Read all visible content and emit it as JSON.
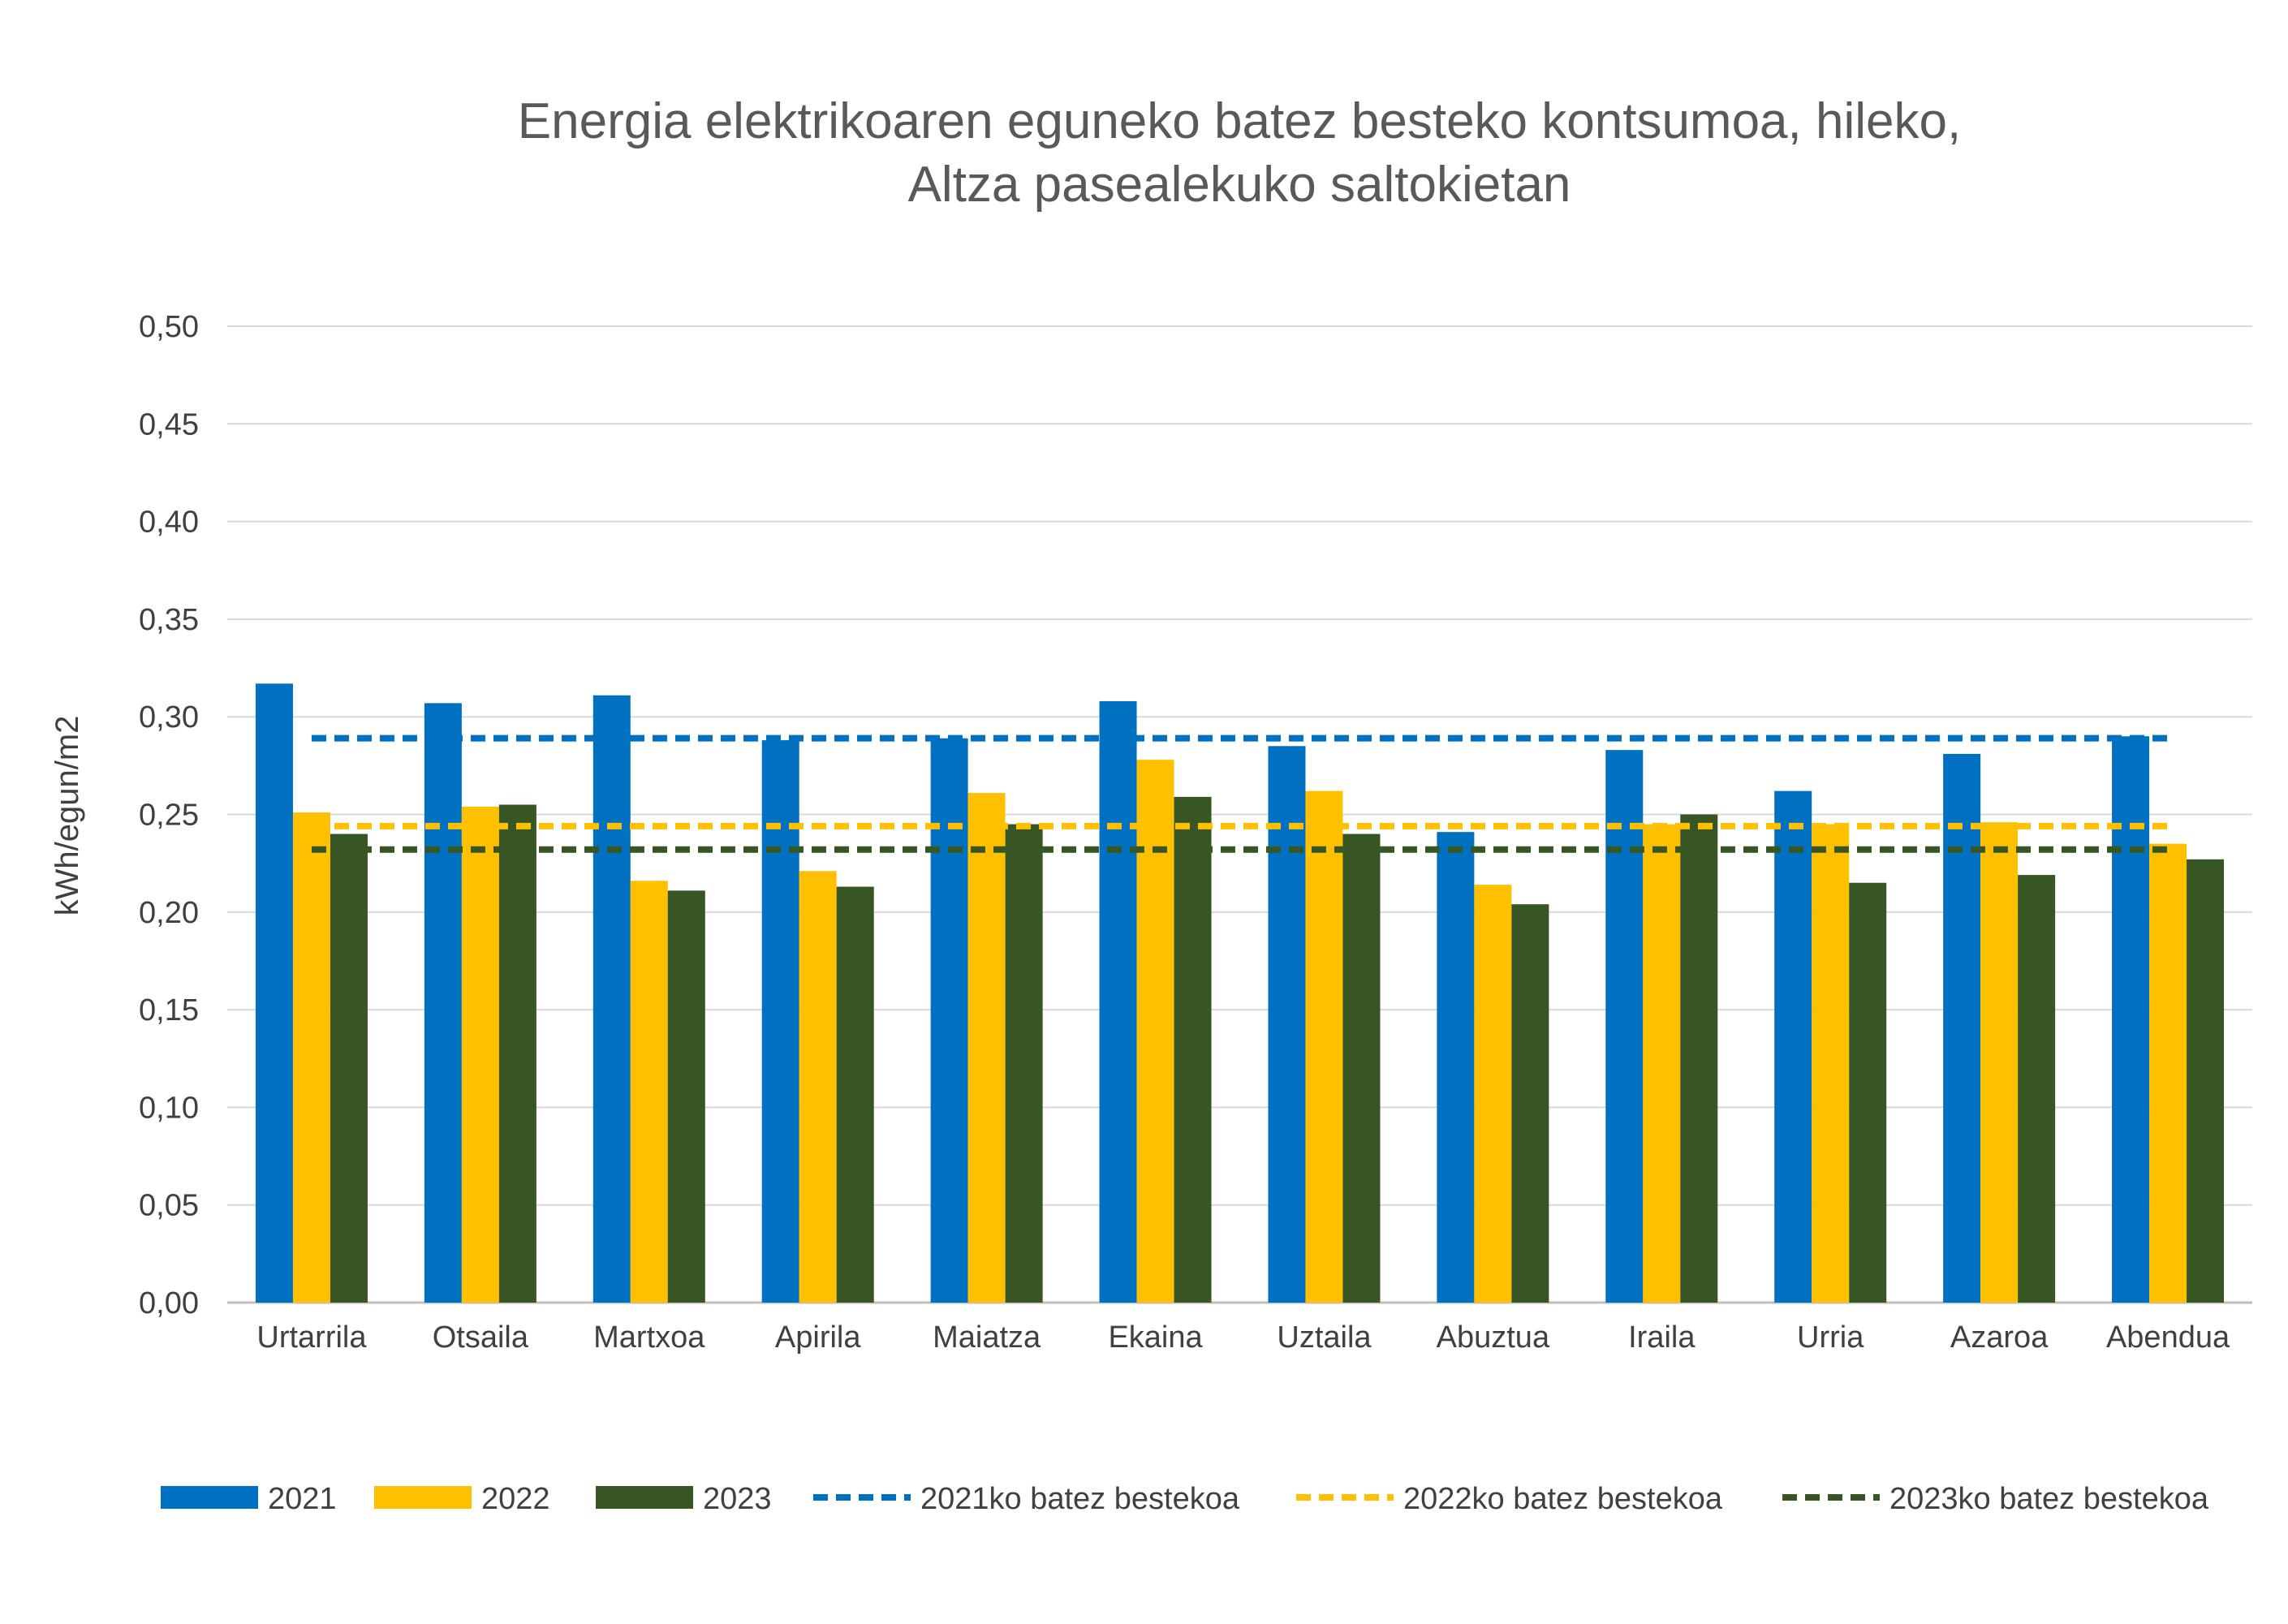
{
  "chart_data": {
    "type": "bar",
    "title_lines": [
      "Energia elektrikoaren eguneko batez besteko kontsumoa, hileko,",
      "Altza pasealekuko saltokietan"
    ],
    "xlabel": "",
    "ylabel": "kWh/egun/m2",
    "ylim": [
      0,
      0.5
    ],
    "yticks": [
      "0,00",
      "0,05",
      "0,10",
      "0,15",
      "0,20",
      "0,25",
      "0,30",
      "0,35",
      "0,40",
      "0,45",
      "0,50"
    ],
    "grid": true,
    "legend_position": "bottom",
    "categories": [
      "Urtarrila",
      "Otsaila",
      "Martxoa",
      "Apirila",
      "Maiatza",
      "Ekaina",
      "Uztaila",
      "Abuztua",
      "Iraila",
      "Urria",
      "Azaroa",
      "Abendua"
    ],
    "series": [
      {
        "name": "2021",
        "color": "#0070C0",
        "values": [
          0.317,
          0.307,
          0.311,
          0.288,
          0.289,
          0.308,
          0.285,
          0.241,
          0.283,
          0.262,
          0.281,
          0.29
        ]
      },
      {
        "name": "2022",
        "color": "#FFC000",
        "values": [
          0.251,
          0.254,
          0.216,
          0.221,
          0.261,
          0.278,
          0.262,
          0.214,
          0.245,
          0.245,
          0.246,
          0.235
        ]
      },
      {
        "name": "2023",
        "color": "#375623",
        "values": [
          0.24,
          0.255,
          0.211,
          0.213,
          0.245,
          0.259,
          0.24,
          0.204,
          0.25,
          0.215,
          0.219,
          0.227
        ]
      }
    ],
    "averages": [
      {
        "name": "2021ko batez bestekoa",
        "color": "#0070C0",
        "value": 0.289
      },
      {
        "name": "2022ko batez bestekoa",
        "color": "#FFC000",
        "value": 0.244
      },
      {
        "name": "2023ko batez bestekoa",
        "color": "#375623",
        "value": 0.232
      }
    ]
  }
}
